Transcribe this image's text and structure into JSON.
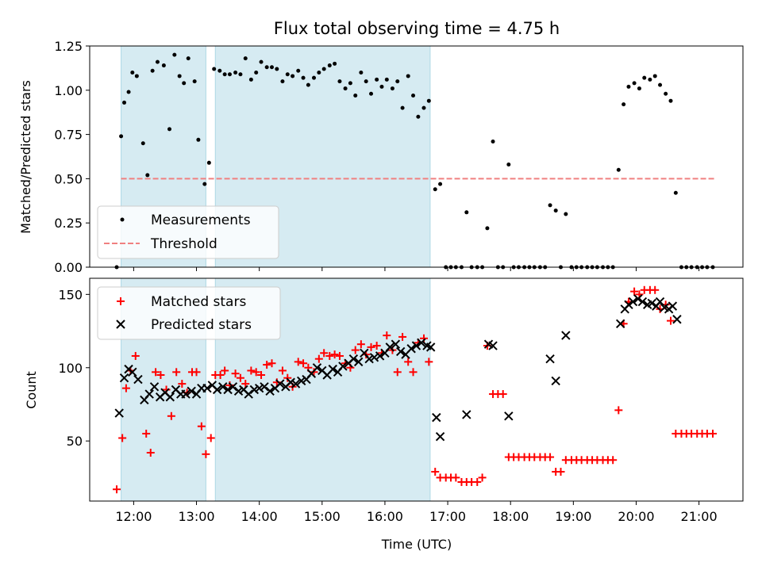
{
  "title": "Flux total observing time = 4.75 h",
  "chart_data": [
    {
      "type": "scatter",
      "ylabel": "Matched/Predicted stars",
      "xlim": [
        11.3,
        21.7
      ],
      "ylim": [
        0,
        1.25
      ],
      "yticks": [
        "0.00",
        "0.25",
        "0.50",
        "0.75",
        "1.00",
        "1.25"
      ],
      "yticks_values": [
        0,
        0.25,
        0.5,
        0.75,
        1.0,
        1.25
      ],
      "legend": {
        "position": "lower-left",
        "entries": [
          "Measurements",
          "Threshold"
        ]
      },
      "threshold": {
        "name": "Threshold",
        "value": 0.5,
        "x_range": [
          11.8,
          21.25
        ],
        "color": "#f08080"
      },
      "shaded_intervals": [
        [
          11.8,
          13.15
        ],
        [
          13.3,
          16.72
        ]
      ],
      "series": [
        {
          "name": "Measurements",
          "color": "#000000",
          "x": [
            11.73,
            11.8,
            11.85,
            11.92,
            11.98,
            12.05,
            12.15,
            12.22,
            12.3,
            12.38,
            12.48,
            12.57,
            12.65,
            12.73,
            12.8,
            12.87,
            12.97,
            13.03,
            13.13,
            13.2,
            13.28,
            13.37,
            13.45,
            13.53,
            13.62,
            13.7,
            13.78,
            13.87,
            13.95,
            14.03,
            14.12,
            14.2,
            14.28,
            14.37,
            14.45,
            14.53,
            14.62,
            14.7,
            14.78,
            14.87,
            14.95,
            15.03,
            15.12,
            15.2,
            15.28,
            15.37,
            15.45,
            15.53,
            15.62,
            15.7,
            15.78,
            15.87,
            15.95,
            16.03,
            16.12,
            16.2,
            16.28,
            16.37,
            16.45,
            16.53,
            16.62,
            16.7,
            16.8,
            16.88,
            16.97,
            17.05,
            17.13,
            17.22,
            17.3,
            17.38,
            17.47,
            17.55,
            17.63,
            17.72,
            17.8,
            17.88,
            17.97,
            18.05,
            18.13,
            18.22,
            18.3,
            18.38,
            18.47,
            18.55,
            18.63,
            18.72,
            18.8,
            18.88,
            18.97,
            19.05,
            19.13,
            19.22,
            19.3,
            19.38,
            19.47,
            19.55,
            19.63,
            19.72,
            19.8,
            19.88,
            19.97,
            20.05,
            20.13,
            20.22,
            20.3,
            20.38,
            20.47,
            20.55,
            20.63,
            20.72,
            20.8,
            20.88,
            20.97,
            21.05,
            21.13,
            21.22
          ],
          "y": [
            0.0,
            0.74,
            0.93,
            0.99,
            1.1,
            1.08,
            0.7,
            0.52,
            1.11,
            1.16,
            1.14,
            0.78,
            1.2,
            1.08,
            1.04,
            1.18,
            1.05,
            0.72,
            0.47,
            0.59,
            1.12,
            1.11,
            1.09,
            1.09,
            1.1,
            1.09,
            1.18,
            1.06,
            1.1,
            1.16,
            1.13,
            1.13,
            1.12,
            1.05,
            1.09,
            1.08,
            1.11,
            1.07,
            1.03,
            1.07,
            1.1,
            1.12,
            1.14,
            1.15,
            1.05,
            1.01,
            1.04,
            0.97,
            1.1,
            1.05,
            0.98,
            1.06,
            1.02,
            1.06,
            1.01,
            1.05,
            0.9,
            1.08,
            0.97,
            0.85,
            0.9,
            0.94,
            0.44,
            0.47,
            0.0,
            0.0,
            0.0,
            0.0,
            0.31,
            0.0,
            0.0,
            0.0,
            0.22,
            0.71,
            0.0,
            0.0,
            0.58,
            0.0,
            0.0,
            0.0,
            0.0,
            0.0,
            0.0,
            0.0,
            0.35,
            0.32,
            0.0,
            0.3,
            0.0,
            0.0,
            0.0,
            0.0,
            0.0,
            0.0,
            0.0,
            0.0,
            0.0,
            0.55,
            0.92,
            1.02,
            1.04,
            1.01,
            1.07,
            1.06,
            1.08,
            1.03,
            0.98,
            0.94,
            0.42,
            0.0,
            0.0,
            0.0,
            0.0,
            0.0,
            0.0,
            0.0
          ]
        }
      ]
    },
    {
      "type": "scatter",
      "xlabel": "Time (UTC)",
      "ylabel": "Count",
      "xlim": [
        11.3,
        21.7
      ],
      "ylim": [
        9,
        161
      ],
      "yticks": [
        "50",
        "100",
        "150"
      ],
      "yticks_values": [
        50,
        100,
        150
      ],
      "xticks": [
        "12:00",
        "13:00",
        "14:00",
        "15:00",
        "16:00",
        "17:00",
        "18:00",
        "19:00",
        "20:00",
        "21:00"
      ],
      "xticks_values": [
        12,
        13,
        14,
        15,
        16,
        17,
        18,
        19,
        20,
        21
      ],
      "legend": {
        "position": "upper-left",
        "entries": [
          "Matched stars",
          "Predicted stars"
        ]
      },
      "shaded_intervals": [
        [
          11.8,
          13.15
        ],
        [
          13.3,
          16.72
        ]
      ],
      "series": [
        {
          "name": "Matched stars",
          "marker": "+",
          "color": "#ff0000",
          "x": [
            11.73,
            11.82,
            11.88,
            11.95,
            12.03,
            12.2,
            12.27,
            12.35,
            12.43,
            12.52,
            12.6,
            12.68,
            12.77,
            12.85,
            12.93,
            13.0,
            13.08,
            13.15,
            13.23,
            13.3,
            13.38,
            13.45,
            13.53,
            13.62,
            13.7,
            13.78,
            13.87,
            13.95,
            14.03,
            14.12,
            14.2,
            14.28,
            14.37,
            14.45,
            14.53,
            14.62,
            14.7,
            14.78,
            14.87,
            14.95,
            15.03,
            15.12,
            15.2,
            15.28,
            15.37,
            15.45,
            15.53,
            15.62,
            15.7,
            15.78,
            15.87,
            15.95,
            16.03,
            16.12,
            16.2,
            16.28,
            16.37,
            16.45,
            16.53,
            16.62,
            16.7,
            16.8,
            16.88,
            16.97,
            17.05,
            17.13,
            17.22,
            17.3,
            17.38,
            17.47,
            17.55,
            17.63,
            17.72,
            17.8,
            17.88,
            17.97,
            18.05,
            18.13,
            18.22,
            18.3,
            18.38,
            18.47,
            18.55,
            18.63,
            18.72,
            18.8,
            18.88,
            18.97,
            19.05,
            19.13,
            19.22,
            19.3,
            19.38,
            19.47,
            19.55,
            19.63,
            19.72,
            19.8,
            19.88,
            19.97,
            20.05,
            20.13,
            20.22,
            20.3,
            20.38,
            20.47,
            20.55,
            20.63,
            20.72,
            20.8,
            20.88,
            20.97,
            21.05,
            21.13,
            21.22
          ],
          "y": [
            17,
            52,
            86,
            98,
            108,
            55,
            42,
            97,
            95,
            85,
            67,
            97,
            89,
            83,
            97,
            97,
            60,
            41,
            52,
            95,
            95,
            98,
            88,
            96,
            93,
            89,
            98,
            97,
            95,
            102,
            103,
            90,
            98,
            93,
            87,
            104,
            103,
            100,
            97,
            106,
            110,
            108,
            109,
            108,
            103,
            100,
            112,
            116,
            109,
            114,
            115,
            110,
            122,
            112,
            97,
            121,
            104,
            97,
            117,
            120,
            104,
            29,
            25,
            25,
            25,
            25,
            22,
            22,
            22,
            22,
            25,
            115,
            82,
            82,
            82,
            39,
            39,
            39,
            39,
            39,
            39,
            39,
            39,
            39,
            29,
            29,
            37,
            37,
            37,
            37,
            37,
            37,
            37,
            37,
            37,
            37,
            71,
            130,
            145,
            152,
            150,
            153,
            153,
            153,
            140,
            143,
            132,
            55,
            55,
            55,
            55,
            55,
            55,
            55,
            55
          ]
        },
        {
          "name": "Predicted stars",
          "marker": "x",
          "color": "#000000",
          "x": [
            11.77,
            11.85,
            11.92,
            11.98,
            12.07,
            12.17,
            12.25,
            12.33,
            12.42,
            12.5,
            12.58,
            12.67,
            12.75,
            12.83,
            12.92,
            13.0,
            13.08,
            13.17,
            13.25,
            13.33,
            13.42,
            13.5,
            13.58,
            13.67,
            13.75,
            13.83,
            13.92,
            14.0,
            14.08,
            14.17,
            14.25,
            14.33,
            14.42,
            14.5,
            14.58,
            14.67,
            14.75,
            14.83,
            14.92,
            15.0,
            15.08,
            15.17,
            15.25,
            15.33,
            15.42,
            15.5,
            15.58,
            15.67,
            15.75,
            15.83,
            15.92,
            16.0,
            16.08,
            16.17,
            16.25,
            16.33,
            16.42,
            16.5,
            16.58,
            16.67,
            16.73,
            16.82,
            16.88,
            17.3,
            17.65,
            17.72,
            17.97,
            18.63,
            18.72,
            18.88,
            19.75,
            19.82,
            19.88,
            19.95,
            20.03,
            20.1,
            20.18,
            20.25,
            20.32,
            20.38,
            20.45,
            20.52,
            20.58,
            20.65
          ],
          "y": [
            69,
            93,
            99,
            97,
            92,
            78,
            82,
            87,
            80,
            83,
            80,
            85,
            82,
            82,
            84,
            82,
            86,
            86,
            88,
            85,
            87,
            85,
            87,
            84,
            85,
            82,
            85,
            86,
            87,
            84,
            86,
            89,
            87,
            90,
            89,
            91,
            92,
            96,
            100,
            98,
            95,
            99,
            97,
            101,
            103,
            106,
            104,
            110,
            106,
            107,
            108,
            110,
            114,
            116,
            111,
            109,
            113,
            115,
            117,
            115,
            114,
            66,
            53,
            68,
            116,
            115,
            67,
            106,
            91,
            122,
            130,
            140,
            143,
            145,
            147,
            145,
            143,
            144,
            142,
            145,
            141,
            140,
            142,
            133
          ]
        }
      ]
    }
  ]
}
